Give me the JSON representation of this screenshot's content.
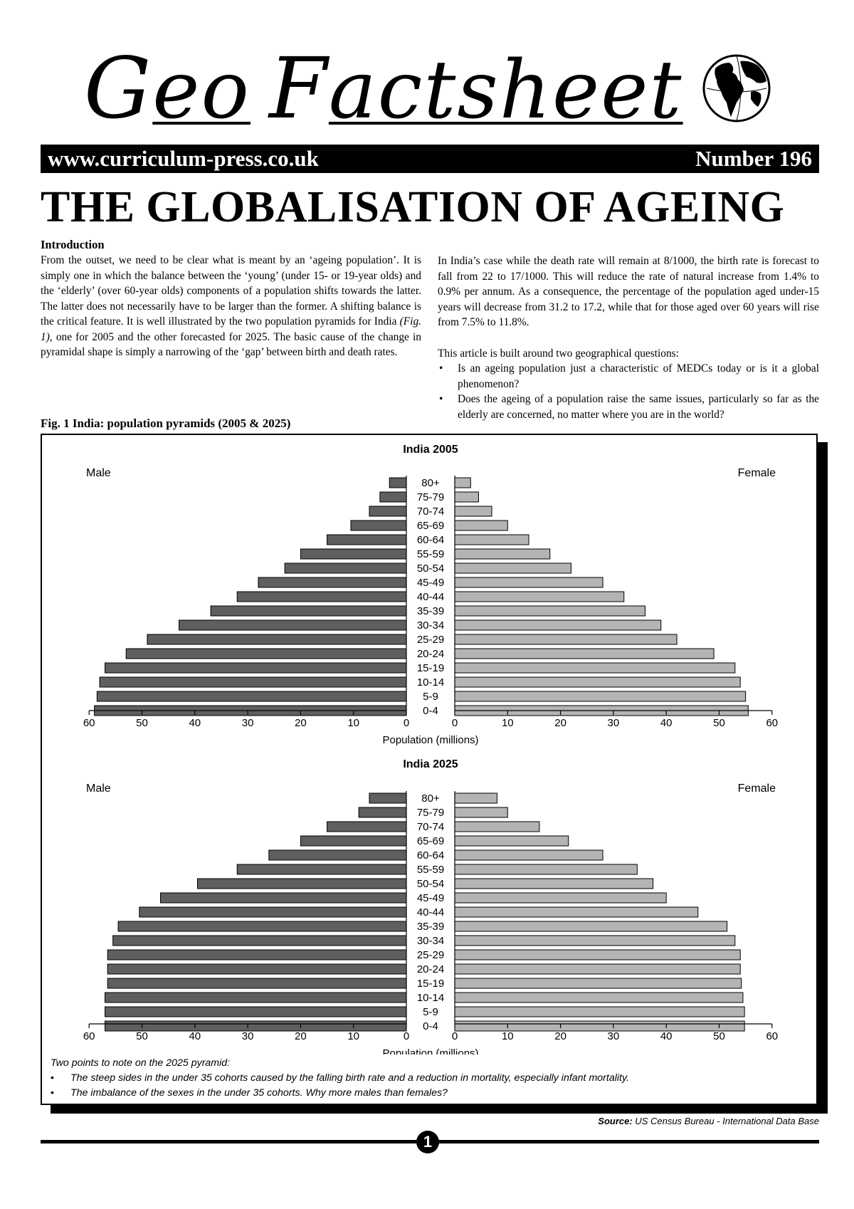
{
  "header": {
    "brand_word1_cap": "G",
    "brand_word1_rest": "eo",
    "brand_word2_cap": "F",
    "brand_word2_rest": "actsheet",
    "website": "www.curriculum-press.co.uk",
    "issue_number": "Number 196",
    "logo_icon": "globe-icon"
  },
  "title": "THE GLOBALISATION OF AGEING",
  "introduction": {
    "heading": "Introduction",
    "paragraph_before_fig": "From the outset, we need to be clear what is meant by an ‘ageing population’. It is simply one in which the balance between the ‘young’ (under 15- or 19-year olds) and the ‘elderly’ (over 60-year olds) components of a population shifts towards the latter. The latter does not necessarily have to be larger than the former. A shifting balance is the critical feature. It is well illustrated by the two population pyramids for India ",
    "fig_ref": "(Fig. 1)",
    "paragraph_after_fig": ", one for 2005 and the other forecasted for 2025. The basic cause of the change in pyramidal shape is simply a narrowing of the ‘gap’ between birth and death rates.",
    "india_paragraph": "In India’s case while the death rate will remain at 8/1000, the birth rate is forecast to fall from 22 to 17/1000. This will reduce the rate of natural increase from 1.4% to 0.9% per annum. As a consequence, the percentage of the population aged under-15 years will decrease from 31.2 to 17.2, while that for those aged over 60 years will rise from 7.5% to 11.8%.",
    "questions_intro": "This article is built around two geographical questions:",
    "questions": [
      "Is an ageing population just a characteristic of MEDCs today or is it a global phenomenon?",
      "Does the ageing of a population raise the same issues, particularly so far as the elderly are concerned, no matter where you are in the world?"
    ]
  },
  "figure": {
    "caption": "Fig. 1 India: population pyramids (2005 & 2025)",
    "notes_heading": "Two points to note on the 2025 pyramid:",
    "notes": [
      "The steep sides in the under 35 cohorts caused by the falling birth rate and a reduction in mortality, especially infant mortality.",
      "The imbalance of the sexes in the under 35 cohorts. Why more males than females?"
    ],
    "source_label": "Source:",
    "source_text": " US Census Bureau - International Data Base"
  },
  "chart_data": [
    {
      "type": "bar",
      "orientation": "horizontal-pyramid",
      "title": "India 2005",
      "left_label": "Male",
      "right_label": "Female",
      "xlabel": "Population (millions)",
      "xlim": [
        0,
        60
      ],
      "xticks": [
        0,
        10,
        20,
        30,
        40,
        50,
        60
      ],
      "categories": [
        "80+",
        "75-79",
        "70-74",
        "65-69",
        "60-64",
        "55-59",
        "50-54",
        "45-49",
        "40-44",
        "35-39",
        "30-34",
        "25-29",
        "20-24",
        "15-19",
        "10-14",
        "5-9",
        "0-4"
      ],
      "series": [
        {
          "name": "Male",
          "color": "#5f5f5f",
          "values": [
            3.2,
            5,
            7,
            10.5,
            15,
            20,
            23,
            28,
            32,
            37,
            43,
            49,
            53,
            57,
            58,
            58.5,
            59
          ]
        },
        {
          "name": "Female",
          "color": "#b4b4b4",
          "values": [
            3,
            4.5,
            7,
            10,
            14,
            18,
            22,
            28,
            32,
            36,
            39,
            42,
            49,
            53,
            54,
            55,
            55.5
          ]
        }
      ]
    },
    {
      "type": "bar",
      "orientation": "horizontal-pyramid",
      "title": "India 2025",
      "left_label": "Male",
      "right_label": "Female",
      "xlabel": "Population (millions)",
      "xlim": [
        0,
        60
      ],
      "xticks": [
        0,
        10,
        20,
        30,
        40,
        50,
        60
      ],
      "categories": [
        "80+",
        "75-79",
        "70-74",
        "65-69",
        "60-64",
        "55-59",
        "50-54",
        "45-49",
        "40-44",
        "35-39",
        "30-34",
        "25-29",
        "20-24",
        "15-19",
        "10-14",
        "5-9",
        "0-4"
      ],
      "series": [
        {
          "name": "Male",
          "color": "#5f5f5f",
          "values": [
            7,
            9,
            15,
            20,
            26,
            32,
            39.5,
            46.5,
            50.5,
            54.5,
            55.5,
            56.5,
            56.5,
            56.5,
            57,
            57,
            57
          ]
        },
        {
          "name": "Female",
          "color": "#b4b4b4",
          "values": [
            8,
            10,
            16,
            21.5,
            28,
            34.5,
            37.5,
            40,
            46,
            51.5,
            53,
            54,
            54,
            54.2,
            54.5,
            54.8,
            54.8
          ]
        }
      ]
    }
  ]
}
